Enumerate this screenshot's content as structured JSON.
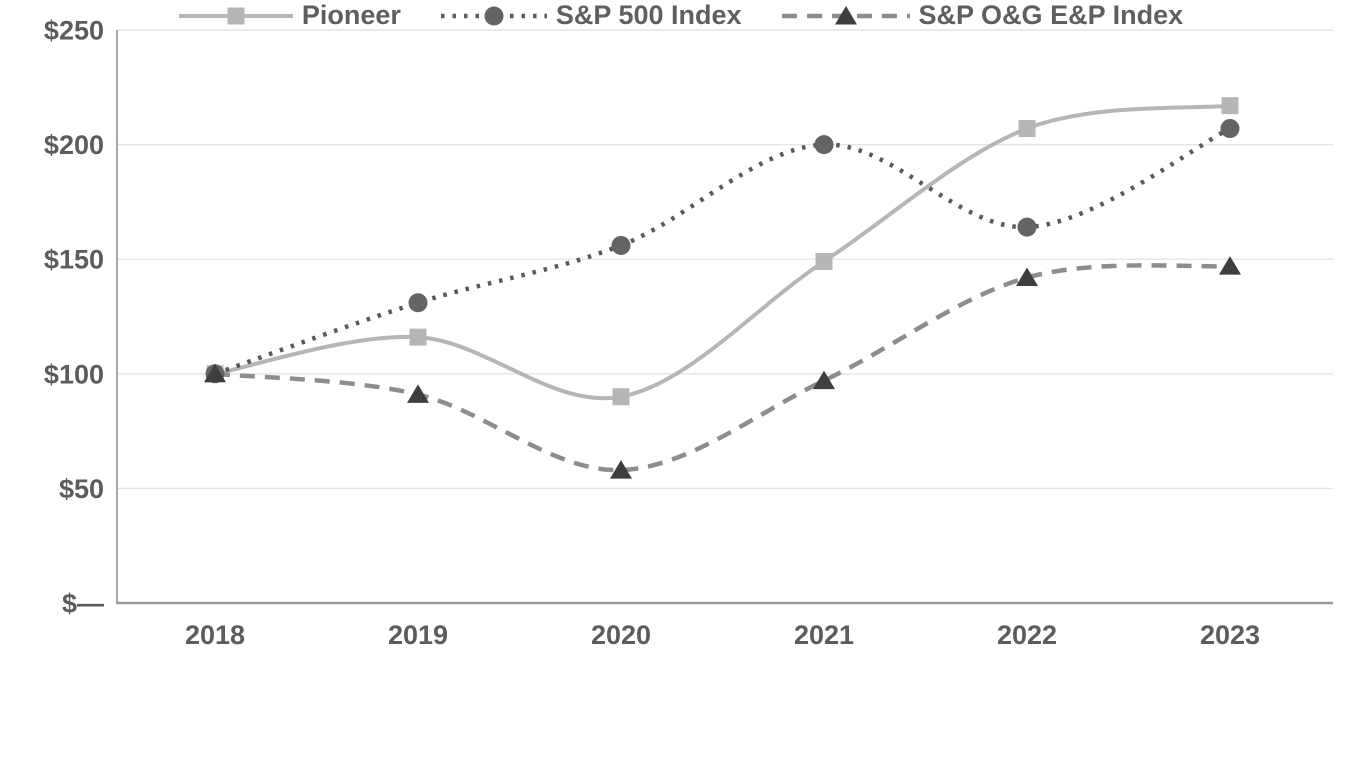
{
  "chart_data": {
    "type": "line",
    "categories": [
      "2018",
      "2019",
      "2020",
      "2021",
      "2022",
      "2023"
    ],
    "series": [
      {
        "name": "Pioneer",
        "values": [
          100,
          116,
          90,
          149,
          207,
          217
        ],
        "line_style": "solid",
        "marker": "square",
        "line_color": "#b6b6b6",
        "marker_color": "#b6b6b6"
      },
      {
        "name": "S&P 500 Index",
        "values": [
          100,
          131,
          156,
          200,
          164,
          207
        ],
        "line_style": "dotted",
        "marker": "circle",
        "line_color": "#5a5a5a",
        "marker_color": "#646464"
      },
      {
        "name": "S&P O&G E&P Index",
        "values": [
          100,
          91,
          58,
          97,
          142,
          147
        ],
        "line_style": "dashed",
        "marker": "triangle",
        "line_color": "#8d8d8d",
        "marker_color": "#3e3e3e"
      }
    ],
    "title": "",
    "xlabel": "",
    "ylabel": "",
    "ylim": [
      0,
      250
    ],
    "ytick_values": [
      250,
      200,
      150,
      100,
      50,
      0
    ],
    "ytick_labels": [
      "$250",
      "$200",
      "$150",
      "$100",
      "$50",
      "$—"
    ],
    "grid": true,
    "legend_position": "bottom"
  },
  "colors": {
    "background": "#ffffff",
    "gridline": "#e4e4e4",
    "axis_left": "#a8a8a8",
    "axis_bottom": "#9a9a9a",
    "tick_text": "#5c5c5c",
    "legend_text": "#5f5f5f"
  }
}
